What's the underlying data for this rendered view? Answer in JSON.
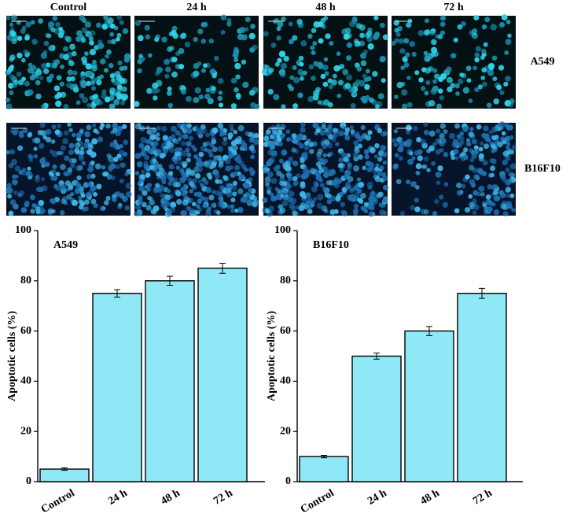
{
  "figure": {
    "columns": [
      "Control",
      "24 h",
      "48 h",
      "72 h"
    ],
    "rows": [
      "A549",
      "B16F10"
    ]
  },
  "chart_data": [
    {
      "type": "bar",
      "title": "A549",
      "y_label": "Apoptotic cells (%)",
      "categories": [
        "Control",
        "24 h",
        "48 h",
        "72 h"
      ],
      "values": [
        5,
        75,
        80,
        85
      ],
      "errors": [
        0.5,
        1.5,
        1.8,
        2
      ],
      "color": "#8fe8f6",
      "ylim": [
        0,
        100
      ],
      "yticks": [
        0,
        20,
        40,
        60,
        80,
        100
      ]
    },
    {
      "type": "bar",
      "title": "B16F10",
      "y_label": "Apoptotic cells (%)",
      "categories": [
        "Control",
        "24 h",
        "48 h",
        "72 h"
      ],
      "values": [
        10,
        50,
        60,
        75
      ],
      "errors": [
        0.5,
        1.2,
        1.8,
        2
      ],
      "color": "#8fe8f6",
      "ylim": [
        0,
        100
      ],
      "yticks": [
        0,
        20,
        40,
        60,
        80,
        100
      ]
    }
  ]
}
